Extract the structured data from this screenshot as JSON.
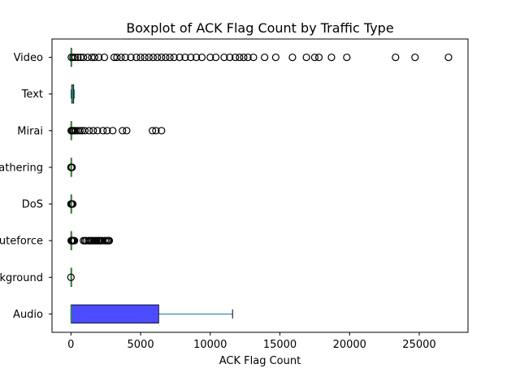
{
  "chart_data": {
    "type": "boxplot",
    "orientation": "horizontal",
    "title": "Boxplot of ACK Flag Count by Traffic Type",
    "xlabel": "ACK Flag Count",
    "ylabel": "",
    "xlim": [
      -1360,
      28500
    ],
    "xticks": [
      0,
      5000,
      10000,
      15000,
      20000,
      25000
    ],
    "xtick_labels": [
      "0",
      "5000",
      "10000",
      "15000",
      "20000",
      "25000"
    ],
    "grid": false,
    "legend": "none",
    "colors": {
      "box_fill_audio": "#4b4bff",
      "box_fill_text": "#3d7ca8",
      "whisker": "#1f77b4",
      "median": "#2ca02c",
      "flier_edge": "#000000"
    },
    "categories": [
      "Audio",
      "Background",
      "Bruteforce",
      "DoS",
      "Information Gathering",
      "Mirai",
      "Text",
      "Video"
    ],
    "category_tick_labels": [
      "Audio",
      "kground",
      "uteforce",
      "DoS",
      "athering",
      "Mirai",
      "Text",
      "Video"
    ],
    "series": [
      {
        "category": "Audio",
        "whislo": 0,
        "q1": 0,
        "med": 0,
        "q3": 6300,
        "whishi": 11600,
        "fliers": []
      },
      {
        "category": "Background",
        "whislo": 0,
        "q1": 0,
        "med": 0,
        "q3": 0,
        "whishi": 0,
        "fliers": [
          0
        ]
      },
      {
        "category": "Bruteforce",
        "whislo": 0,
        "q1": 0,
        "med": 0,
        "q3": 0,
        "whishi": 0,
        "fliers": [
          20,
          60,
          100,
          150,
          200,
          250,
          900,
          1000,
          1100,
          1250,
          1350,
          1450,
          1550,
          1650,
          1750,
          1850,
          1950,
          2050,
          2150,
          2250,
          2450,
          2550,
          2650,
          2700,
          2750
        ]
      },
      {
        "category": "DoS",
        "whislo": 0,
        "q1": 0,
        "med": 0,
        "q3": 0,
        "whishi": 0,
        "fliers": [
          0,
          40,
          80,
          130
        ]
      },
      {
        "category": "Information Gathering",
        "whislo": 0,
        "q1": 0,
        "med": 0,
        "q3": 0,
        "whishi": 0,
        "fliers": [
          0,
          40,
          80
        ]
      },
      {
        "category": "Mirai",
        "whislo": 0,
        "q1": 0,
        "med": 0,
        "q3": 0,
        "whishi": 0,
        "fliers": [
          20,
          80,
          150,
          250,
          350,
          500,
          650,
          800,
          1000,
          1300,
          1600,
          1900,
          2300,
          2600,
          3000,
          3700,
          4000,
          5850,
          6100,
          6500
        ]
      },
      {
        "category": "Text",
        "whislo": 0,
        "q1": 50,
        "med": 100,
        "q3": 200,
        "whishi": 250,
        "fliers": []
      },
      {
        "category": "Video",
        "whislo": 0,
        "q1": 0,
        "med": 0,
        "q3": 0,
        "whishi": 0,
        "fliers": [
          30,
          150,
          300,
          500,
          700,
          900,
          1200,
          1500,
          1700,
          2000,
          2400,
          3100,
          3300,
          3600,
          3900,
          4300,
          4700,
          5000,
          5300,
          5600,
          5900,
          6200,
          6500,
          6800,
          7100,
          7400,
          7800,
          8200,
          8600,
          9000,
          9400,
          10000,
          10400,
          11000,
          11400,
          11800,
          12100,
          12400,
          12700,
          13100,
          13900,
          14700,
          15900,
          16900,
          17500,
          17800,
          18700,
          19800,
          23300,
          24700,
          27100
        ]
      }
    ]
  }
}
